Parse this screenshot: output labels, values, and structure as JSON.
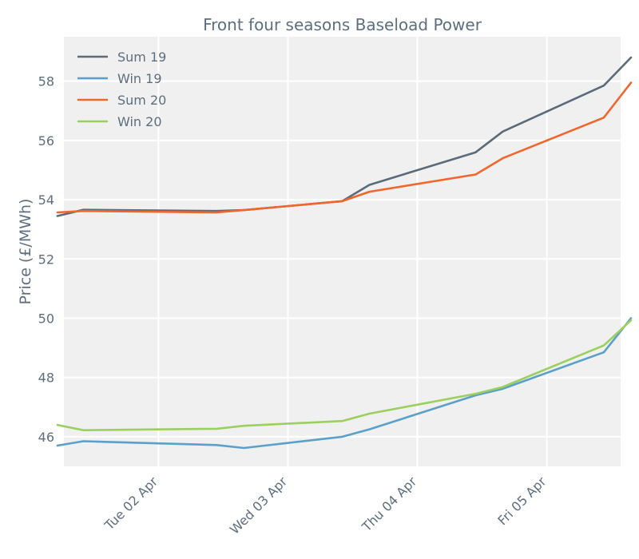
{
  "chart_data": {
    "type": "line",
    "title": "Front four seasons Baseload Power",
    "xlabel": "",
    "ylabel": "Price (£/MWh)",
    "x_range": [
      0.27,
      4.57
    ],
    "ylim": [
      45.0,
      59.5
    ],
    "yticks": [
      46,
      48,
      50,
      52,
      54,
      56,
      58
    ],
    "xticks": [
      {
        "label": "Tue 02 Apr",
        "x": 1.0
      },
      {
        "label": "Wed 03 Apr",
        "x": 2.0
      },
      {
        "label": "Thu 04 Apr",
        "x": 3.0
      },
      {
        "label": "Fri 05 Apr",
        "x": 4.0
      }
    ],
    "grid": true,
    "legend_position": "top-left",
    "series": [
      {
        "name": "Sum 19",
        "color": "#5b6b7a",
        "x": [
          0.22,
          0.42,
          1.45,
          1.66,
          2.42,
          2.63,
          3.45,
          3.66,
          4.44,
          4.65
        ],
        "y": [
          53.45,
          53.66,
          53.62,
          53.65,
          53.95,
          54.5,
          55.6,
          56.3,
          57.85,
          58.8
        ]
      },
      {
        "name": "Win 19",
        "color": "#5aa0c8",
        "x": [
          0.22,
          0.42,
          1.45,
          1.66,
          2.42,
          2.63,
          3.45,
          3.66,
          4.44,
          4.65
        ],
        "y": [
          45.7,
          45.85,
          45.72,
          45.62,
          46.0,
          46.25,
          47.4,
          47.62,
          48.85,
          50.0
        ]
      },
      {
        "name": "Sum 20",
        "color": "#f0662c",
        "x": [
          0.22,
          0.42,
          1.45,
          1.66,
          2.42,
          2.63,
          3.45,
          3.66,
          4.44,
          4.65
        ],
        "y": [
          53.57,
          53.62,
          53.57,
          53.65,
          53.95,
          54.27,
          54.85,
          55.4,
          56.77,
          57.95
        ]
      },
      {
        "name": "Win 20",
        "color": "#9bcf5e",
        "x": [
          0.22,
          0.42,
          1.45,
          1.66,
          2.42,
          2.63,
          3.45,
          3.66,
          4.44,
          4.65
        ],
        "y": [
          46.4,
          46.22,
          46.27,
          46.37,
          46.53,
          46.78,
          47.45,
          47.68,
          49.08,
          49.93
        ]
      }
    ]
  }
}
